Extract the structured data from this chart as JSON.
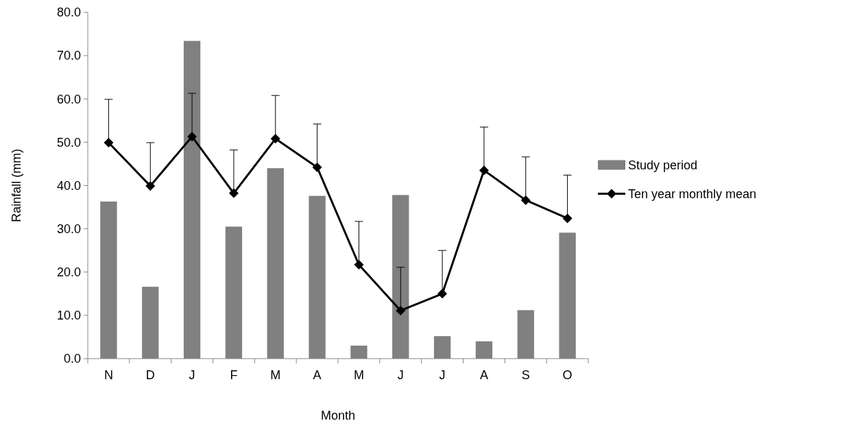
{
  "chart_data": {
    "type": "bar",
    "xlabel": "Month",
    "ylabel": "Rainfall (mm)",
    "categories": [
      "N",
      "D",
      "J",
      "F",
      "M",
      "A",
      "M",
      "J",
      "J",
      "A",
      "S",
      "O"
    ],
    "series": [
      {
        "name": "Study period",
        "color": "#808080",
        "values": [
          36.3,
          16.6,
          73.4,
          30.5,
          44.0,
          37.6,
          3.0,
          37.8,
          5.2,
          4.0,
          11.2,
          29.1
        ]
      },
      {
        "name": "Ten year monthly mean",
        "type": "line",
        "color": "#000000",
        "marker": "diamond",
        "values": [
          49.9,
          39.9,
          51.3,
          38.2,
          50.8,
          44.2,
          21.7,
          11.1,
          15.0,
          43.5,
          36.6,
          32.4
        ],
        "errors": [
          [
            49.9,
            59.9
          ],
          [
            39.9,
            49.9
          ],
          [
            51.3,
            61.3
          ],
          [
            38.2,
            48.2
          ],
          [
            50.8,
            60.8
          ],
          [
            44.2,
            54.2
          ],
          [
            21.7,
            31.7
          ],
          [
            11.1,
            21.1
          ],
          [
            15.0,
            25.0
          ],
          [
            43.5,
            53.5
          ],
          [
            36.6,
            46.6
          ],
          [
            32.4,
            42.4
          ]
        ]
      }
    ],
    "ylim": [
      0,
      80
    ],
    "yticks": [
      {
        "value": 0,
        "label": "0.0"
      },
      {
        "value": 10,
        "label": "10.0"
      },
      {
        "value": 20,
        "label": "20.0"
      },
      {
        "value": 30,
        "label": "30.0"
      },
      {
        "value": 40,
        "label": "40.0"
      },
      {
        "value": 50,
        "label": "50.0"
      },
      {
        "value": 60,
        "label": "60.0"
      },
      {
        "value": 70,
        "label": "70.0"
      },
      {
        "value": 80,
        "label": "80.0"
      }
    ],
    "grid": false,
    "legend": "right"
  }
}
